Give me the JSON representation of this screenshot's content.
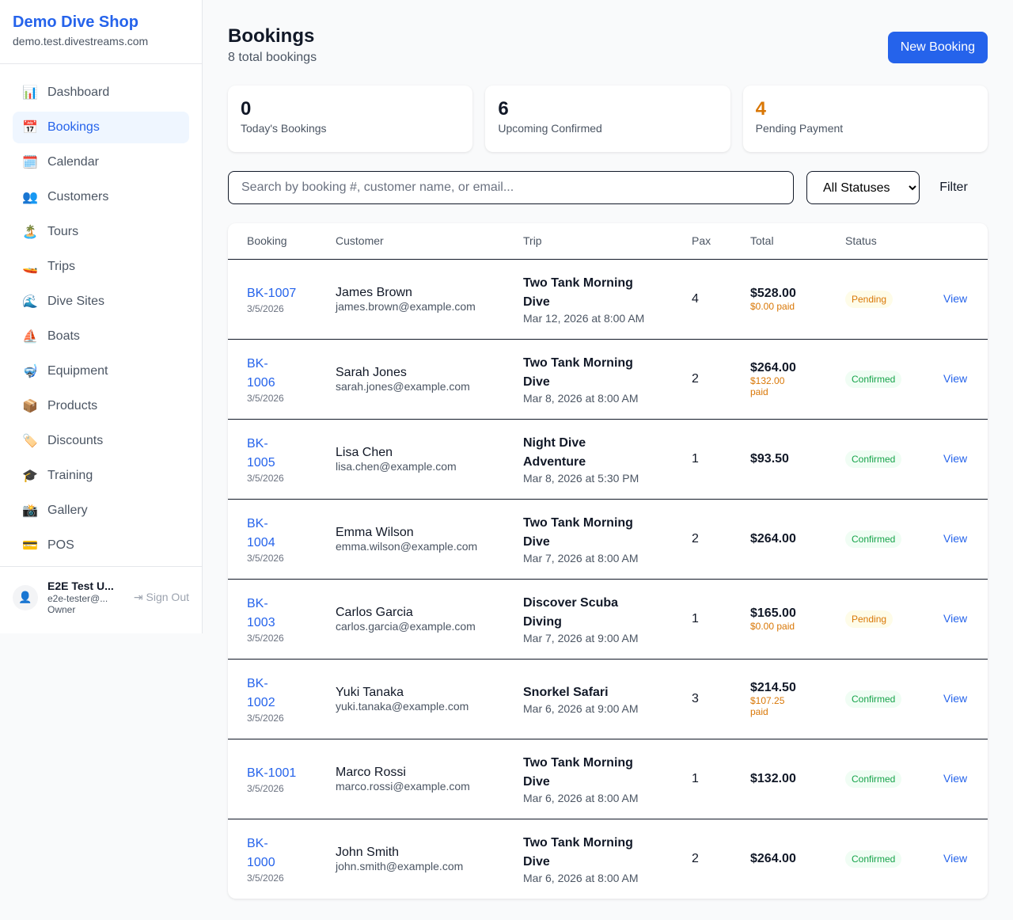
{
  "sidebar": {
    "shop_name": "Demo Dive Shop",
    "domain": "demo.test.divestreams.com",
    "items": [
      {
        "icon": "📊",
        "icon_name": "bar-chart-icon",
        "label": "Dashboard"
      },
      {
        "icon": "📅",
        "icon_name": "calendar-icon",
        "label": "Bookings",
        "active": true
      },
      {
        "icon": "🗓️",
        "icon_name": "spiral-calendar-icon",
        "label": "Calendar"
      },
      {
        "icon": "👥",
        "icon_name": "users-icon",
        "label": "Customers"
      },
      {
        "icon": "🏝️",
        "icon_name": "island-icon",
        "label": "Tours"
      },
      {
        "icon": "🚤",
        "icon_name": "speedboat-icon",
        "label": "Trips"
      },
      {
        "icon": "🌊",
        "icon_name": "wave-icon",
        "label": "Dive Sites"
      },
      {
        "icon": "⛵",
        "icon_name": "sailboat-icon",
        "label": "Boats"
      },
      {
        "icon": "🤿",
        "icon_name": "diving-mask-icon",
        "label": "Equipment"
      },
      {
        "icon": "📦",
        "icon_name": "package-icon",
        "label": "Products"
      },
      {
        "icon": "🏷️",
        "icon_name": "tag-icon",
        "label": "Discounts"
      },
      {
        "icon": "🎓",
        "icon_name": "graduation-cap-icon",
        "label": "Training"
      },
      {
        "icon": "📸",
        "icon_name": "camera-icon",
        "label": "Gallery"
      },
      {
        "icon": "💳",
        "icon_name": "credit-card-icon",
        "label": "POS"
      }
    ],
    "user": {
      "name": "E2E Test U...",
      "email": "e2e-tester@...",
      "role": "Owner",
      "sign_out": "Sign Out"
    }
  },
  "header": {
    "title": "Bookings",
    "subtitle": "8 total bookings",
    "new_button": "New Booking"
  },
  "stats": [
    {
      "value": "0",
      "label": "Today's Bookings",
      "color": "#111827"
    },
    {
      "value": "6",
      "label": "Upcoming Confirmed",
      "color": "#111827"
    },
    {
      "value": "4",
      "label": "Pending Payment",
      "color": "#d97706"
    }
  ],
  "filters": {
    "search_placeholder": "Search by booking #, customer name, or email...",
    "status_selected": "All Statuses",
    "filter_button": "Filter"
  },
  "table": {
    "headers": [
      "Booking",
      "Customer",
      "Trip",
      "Pax",
      "Total",
      "Status",
      ""
    ],
    "rows": [
      {
        "id": "BK-1007",
        "date": "3/5/2026",
        "customer": "James Brown",
        "email": "james.brown@example.com",
        "trip": "Two Tank Morning Dive",
        "trip_date": "Mar 12, 2026 at 8:00 AM",
        "pax": "4",
        "total": "$528.00",
        "paid": "$0.00 paid",
        "status": "Pending",
        "action": "View"
      },
      {
        "id": "BK-1006",
        "date": "3/5/2026",
        "customer": "Sarah Jones",
        "email": "sarah.jones@example.com",
        "trip": "Two Tank Morning Dive",
        "trip_date": "Mar 8, 2026 at 8:00 AM",
        "pax": "2",
        "total": "$264.00",
        "paid": "$132.00 paid",
        "status": "Confirmed",
        "action": "View"
      },
      {
        "id": "BK-1005",
        "date": "3/5/2026",
        "customer": "Lisa Chen",
        "email": "lisa.chen@example.com",
        "trip": "Night Dive Adventure",
        "trip_date": "Mar 8, 2026 at 5:30 PM",
        "pax": "1",
        "total": "$93.50",
        "paid": "",
        "status": "Confirmed",
        "action": "View"
      },
      {
        "id": "BK-1004",
        "date": "3/5/2026",
        "customer": "Emma Wilson",
        "email": "emma.wilson@example.com",
        "trip": "Two Tank Morning Dive",
        "trip_date": "Mar 7, 2026 at 8:00 AM",
        "pax": "2",
        "total": "$264.00",
        "paid": "",
        "status": "Confirmed",
        "action": "View"
      },
      {
        "id": "BK-1003",
        "date": "3/5/2026",
        "customer": "Carlos Garcia",
        "email": "carlos.garcia@example.com",
        "trip": "Discover Scuba Diving",
        "trip_date": "Mar 7, 2026 at 9:00 AM",
        "pax": "1",
        "total": "$165.00",
        "paid": "$0.00 paid",
        "status": "Pending",
        "action": "View"
      },
      {
        "id": "BK-1002",
        "date": "3/5/2026",
        "customer": "Yuki Tanaka",
        "email": "yuki.tanaka@example.com",
        "trip": "Snorkel Safari",
        "trip_date": "Mar 6, 2026 at 9:00 AM",
        "pax": "3",
        "total": "$214.50",
        "paid": "$107.25 paid",
        "status": "Confirmed",
        "action": "View"
      },
      {
        "id": "BK-1001",
        "date": "3/5/2026",
        "customer": "Marco Rossi",
        "email": "marco.rossi@example.com",
        "trip": "Two Tank Morning Dive",
        "trip_date": "Mar 6, 2026 at 8:00 AM",
        "pax": "1",
        "total": "$132.00",
        "paid": "",
        "status": "Confirmed",
        "action": "View"
      },
      {
        "id": "BK-1000",
        "date": "3/5/2026",
        "customer": "John Smith",
        "email": "john.smith@example.com",
        "trip": "Two Tank Morning Dive",
        "trip_date": "Mar 6, 2026 at 8:00 AM",
        "pax": "2",
        "total": "$264.00",
        "paid": "",
        "status": "Confirmed",
        "action": "View"
      }
    ]
  }
}
